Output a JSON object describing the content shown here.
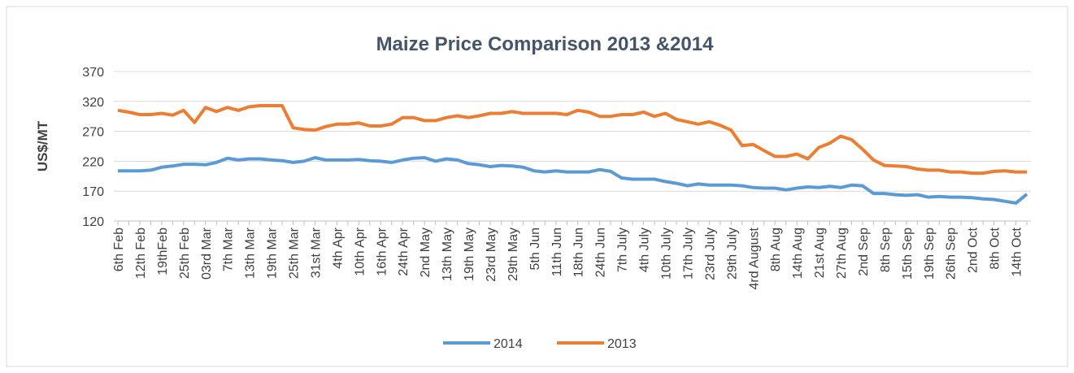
{
  "chart_data": {
    "type": "line",
    "title": "Maize Price Comparison 2013 &2014",
    "ylabel": "US$/MT",
    "categories": [
      "6th Feb",
      null,
      "12th Feb",
      null,
      "19thFeb",
      null,
      "25th Feb",
      null,
      "03rd Mar",
      null,
      "7th Mar",
      null,
      "13th Mar",
      null,
      "19th Mar",
      null,
      "25th Mar",
      null,
      "31st Mar",
      null,
      "4th Apr",
      null,
      "10th Apr",
      null,
      "16th Apr",
      null,
      "24th Apr",
      null,
      "2nd May",
      null,
      "13th May",
      null,
      "19th May",
      null,
      "23rd May",
      null,
      "29th May",
      null,
      "5th Jun",
      null,
      "11th Jun",
      null,
      "18th Jun",
      null,
      "24th Jun",
      null,
      "7th July",
      null,
      "4th July",
      null,
      "10th July",
      null,
      "17th July",
      null,
      "23rd July",
      null,
      "29th July",
      null,
      "4rd August",
      null,
      "8th Aug",
      null,
      "14th Aug",
      null,
      "21st Aug",
      null,
      "27th Aug",
      null,
      "2nd Sep",
      null,
      "8th Sep",
      null,
      "15th Sep",
      null,
      "19th Sep",
      null,
      "26th Sep",
      null,
      "2nd Oct",
      null,
      "8th Oct",
      null,
      "14th Oct",
      null
    ],
    "series": [
      {
        "name": "2014",
        "color": "#5b9bd5",
        "values": [
          204,
          204,
          204,
          205,
          210,
          212,
          215,
          215,
          214,
          218,
          225,
          222,
          224,
          224,
          222,
          221,
          218,
          220,
          226,
          222,
          222,
          222,
          223,
          221,
          220,
          218,
          222,
          225,
          226,
          220,
          224,
          222,
          216,
          214,
          211,
          213,
          212,
          210,
          204,
          202,
          204,
          202,
          202,
          202,
          206,
          203,
          192,
          190,
          190,
          190,
          186,
          183,
          179,
          182,
          180,
          180,
          180,
          179,
          176,
          175,
          175,
          172,
          175,
          177,
          176,
          178,
          176,
          180,
          179,
          166,
          166,
          164,
          163,
          164,
          160,
          161,
          160,
          160,
          159,
          157,
          156,
          153,
          150,
          165
        ]
      },
      {
        "name": "2013",
        "color": "#ed7d31",
        "values": [
          305,
          302,
          298,
          298,
          300,
          297,
          305,
          285,
          310,
          303,
          310,
          305,
          311,
          313,
          313,
          313,
          276,
          273,
          272,
          278,
          282,
          282,
          284,
          279,
          279,
          282,
          293,
          293,
          288,
          288,
          293,
          296,
          293,
          296,
          300,
          300,
          303,
          300,
          300,
          300,
          300,
          298,
          305,
          302,
          295,
          295,
          298,
          298,
          302,
          295,
          300,
          290,
          286,
          282,
          286,
          280,
          272,
          246,
          248,
          238,
          228,
          228,
          232,
          224,
          243,
          250,
          262,
          256,
          240,
          222,
          213,
          212,
          211,
          207,
          205,
          205,
          202,
          202,
          200,
          200,
          203,
          204,
          202,
          202
        ]
      }
    ],
    "ylim": [
      120,
      370
    ],
    "yticks": [
      120,
      170,
      220,
      270,
      320,
      370
    ],
    "grid": true,
    "legend": "bottom"
  }
}
